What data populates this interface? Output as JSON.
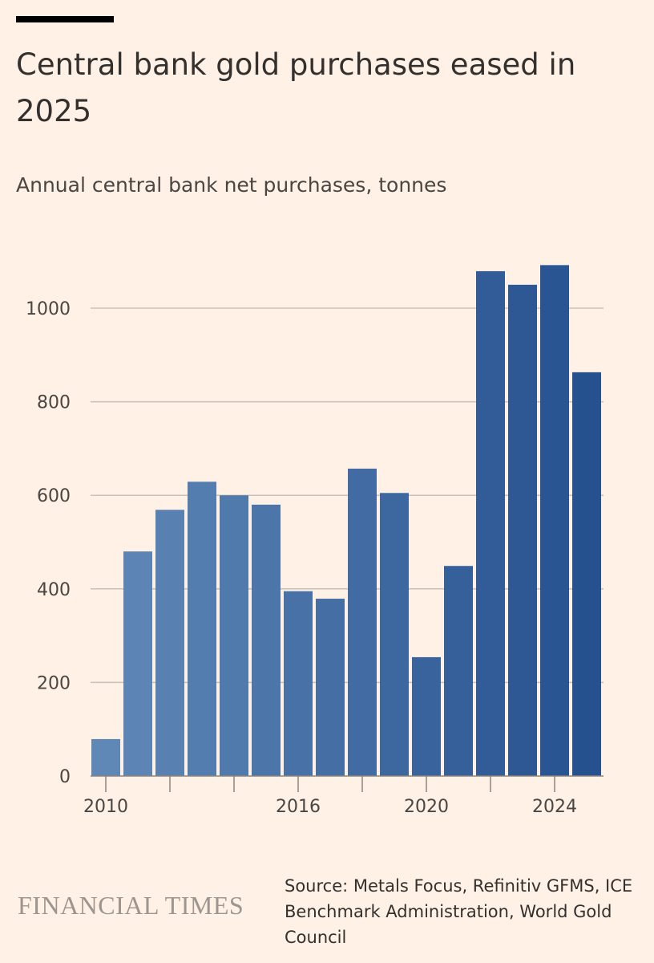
{
  "chart_data": {
    "type": "bar",
    "title": "Central bank gold purchases eased in 2025",
    "subtitle": "Annual central bank net purchases, tonnes",
    "xlabel": "",
    "ylabel": "",
    "categories": [
      2010,
      2011,
      2012,
      2013,
      2014,
      2015,
      2016,
      2017,
      2018,
      2019,
      2020,
      2021,
      2022,
      2023,
      2024,
      2025
    ],
    "values": [
      79,
      480,
      569,
      629,
      600,
      580,
      395,
      379,
      657,
      605,
      254,
      449,
      1079,
      1050,
      1092,
      863
    ],
    "ylim": [
      0,
      1100
    ],
    "yticks": [
      0,
      200,
      400,
      600,
      800,
      1000
    ],
    "xtick_labels": [
      "2010",
      "2016",
      "2020",
      "2024"
    ],
    "xtick_marks": [
      2010,
      2012,
      2014,
      2016,
      2018,
      2020,
      2022,
      2024
    ],
    "grid": true,
    "colors": {
      "start": "#6088b7",
      "end": "#25518f",
      "grid": "#c9c1b9",
      "axis": "#8b847e"
    }
  },
  "source": "Source: Metals Focus, Refinitiv GFMS, ICE Benchmark Administration, World Gold Council",
  "logo": "FINANCIAL TIMES"
}
